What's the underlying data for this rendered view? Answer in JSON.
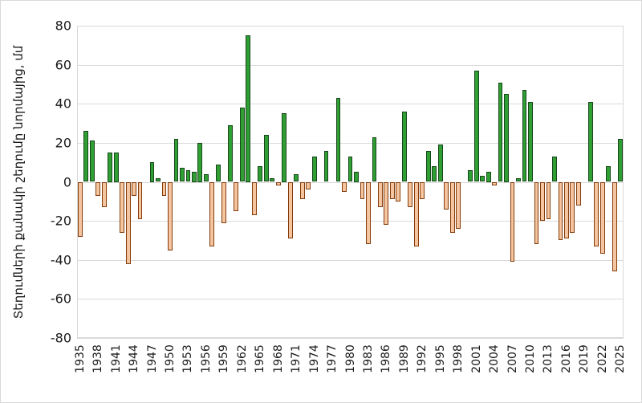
{
  "figure": {
    "background": "#ffffff",
    "border_color": "#d9d9d9"
  },
  "chart_data": {
    "type": "bar",
    "title": "",
    "ylabel": "Տեղումների քանակի շեղումը նորմայից, մմ",
    "xlabel": "",
    "ylim": [
      -80,
      80
    ],
    "y_ticks": [
      80,
      60,
      40,
      20,
      0,
      -20,
      -40,
      -60,
      -80
    ],
    "x_first_year": 1935,
    "x_last_year": 2025,
    "x_tick_labels": [
      "1935",
      "1938",
      "1941",
      "1944",
      "1947",
      "1950",
      "1953",
      "1956",
      "1959",
      "1962",
      "1965",
      "1968",
      "1971",
      "1974",
      "1977",
      "1980",
      "1983",
      "1986",
      "1989",
      "1992",
      "1995",
      "1998",
      "2001",
      "2004",
      "2007",
      "2010",
      "2013",
      "2016",
      "2019",
      "2022",
      "2025"
    ],
    "grid": "horizontal",
    "legend_position": "none",
    "empty_years": [
      1946,
      1975,
      1977,
      1999,
      2019
    ],
    "gridline_color": "#d9d9d9",
    "tick_label_color": "#1a1a1a",
    "series": [
      {
        "name": "precipitation-deviation-mm",
        "positive_fill": "#2f9e33",
        "positive_border": "#17471a",
        "negative_fill": "#f4c59e",
        "negative_border": "#843c0c",
        "values": [
          -28,
          26,
          21,
          -7,
          -13,
          15,
          15,
          -26,
          -42,
          -7,
          -19,
          0,
          10,
          2,
          -7,
          -35,
          22,
          7,
          6,
          5,
          20,
          4,
          -33,
          9,
          -21,
          29,
          -15,
          38,
          75,
          -17,
          8,
          24,
          2,
          -2,
          35,
          -29,
          4,
          -9,
          -4,
          13,
          0,
          16,
          0,
          43,
          -5,
          13,
          5,
          -9,
          -32,
          23,
          -13,
          -22,
          -9,
          -10,
          36,
          -13,
          -33,
          -9,
          16,
          8,
          19,
          -14,
          -26,
          -24,
          0,
          6,
          57,
          3,
          5,
          -2,
          51,
          45,
          -41,
          2,
          47,
          41,
          -32,
          -20,
          -19,
          13,
          -30,
          -29,
          -26,
          -12,
          0,
          41,
          -33,
          -37,
          8,
          -46,
          22
        ]
      }
    ]
  }
}
